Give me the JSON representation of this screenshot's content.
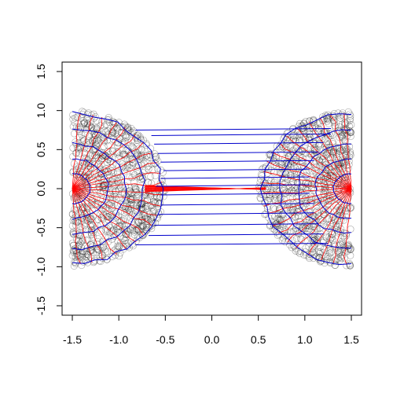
{
  "chart_data": {
    "type": "scatter",
    "title": "",
    "xlabel": "",
    "ylabel": "",
    "xlim": [
      -1.6,
      1.6
    ],
    "ylim": [
      -1.6,
      1.6
    ],
    "grid": false,
    "legend": "none",
    "x_ticks": [
      -1.5,
      -1.0,
      -0.5,
      0.0,
      0.5,
      1.0,
      1.5
    ],
    "x_tick_labels": [
      "-1.5",
      "-1.0",
      "-0.5",
      "0.0",
      "0.5",
      "1.0",
      "1.5"
    ],
    "y_ticks": [
      -1.5,
      -1.0,
      -0.5,
      0.0,
      0.5,
      1.0,
      1.5
    ],
    "y_tick_labels": [
      "-1.5",
      "-1.0",
      "-0.5",
      "0.0",
      "0.5",
      "1.0",
      "1.5"
    ],
    "colors": {
      "points": "#000000",
      "red_lines": "#ff0000",
      "blue_lines": "#0000cc",
      "axis": "#000000"
    },
    "left_cluster": {
      "hub": [
        -1.5,
        0.0
      ],
      "radius": 1.0,
      "center_x": -1.5
    },
    "right_cluster": {
      "hub": [
        1.5,
        0.0
      ],
      "radius": 1.0,
      "center_x": 1.5
    },
    "bridge_blue_y": [
      0.75,
      0.68,
      0.57,
      0.45,
      0.34,
      0.23,
      0.13,
      0.03,
      -0.08,
      -0.21,
      -0.33,
      -0.47,
      -0.6,
      -0.72
    ],
    "bridge_blue_ends": [
      [
        -0.82,
        1.28
      ],
      [
        -0.65,
        1.28
      ],
      [
        -0.62,
        1.2
      ],
      [
        -0.58,
        1.15
      ],
      [
        -0.55,
        1.1
      ],
      [
        -0.52,
        1.05
      ],
      [
        -0.55,
        1.05
      ],
      [
        -0.6,
        1.05
      ],
      [
        -0.55,
        1.05
      ],
      [
        -0.55,
        1.1
      ],
      [
        -0.58,
        1.1
      ],
      [
        -0.62,
        1.15
      ],
      [
        -0.68,
        1.2
      ],
      [
        -0.82,
        1.25
      ]
    ],
    "red_fan": {
      "left_x": -0.72,
      "right_x": 0.58,
      "count": 11,
      "spread": 0.08
    },
    "point_count_per_cluster": 900
  }
}
